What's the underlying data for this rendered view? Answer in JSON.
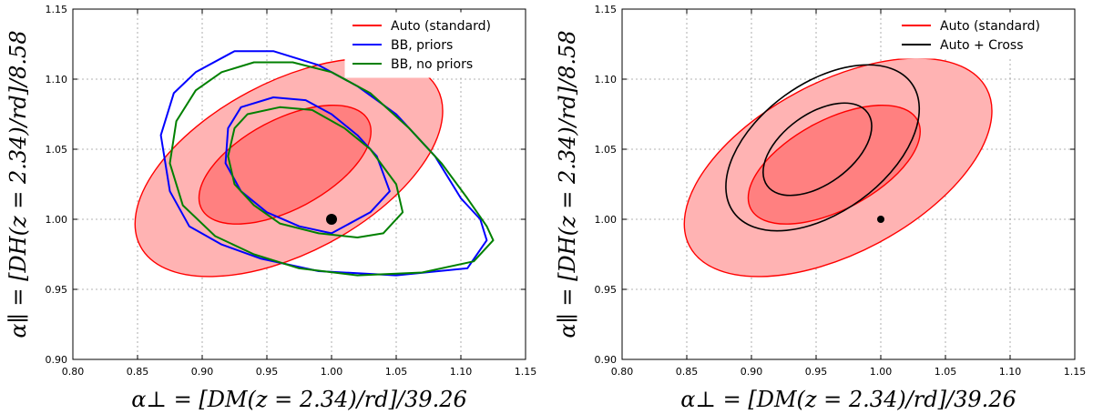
{
  "chart_data": [
    {
      "type": "contour",
      "xlabel": "α⊥ = [DM(z = 2.34)/rd]/39.26",
      "ylabel": "α∥ = [DH(z = 2.34)/rd]/8.58",
      "xlim": [
        0.8,
        1.15
      ],
      "ylim": [
        0.9,
        1.15
      ],
      "xticks": [
        "0.80",
        "0.85",
        "0.90",
        "0.95",
        "1.00",
        "1.05",
        "1.10",
        "1.15"
      ],
      "yticks": [
        "0.90",
        "0.95",
        "1.00",
        "1.05",
        "1.10",
        "1.15"
      ],
      "grid": true,
      "legend_position": "top-right",
      "legend": [
        {
          "label": "Auto (standard)",
          "color": "#ff0000"
        },
        {
          "label": "BB, priors",
          "color": "#0000ff"
        },
        {
          "label": "BB, no priors",
          "color": "#008000"
        }
      ],
      "fiducial_point": {
        "x": 1.0,
        "y": 1.0
      },
      "filled_contours": [
        {
          "series": "Auto (standard)",
          "level": "2sigma",
          "color": "#ffb3b3",
          "center": [
            0.967,
            1.037
          ],
          "semi_axes": [
            0.13,
            0.061
          ],
          "angle_deg": -28
        },
        {
          "series": "Auto (standard)",
          "level": "1sigma",
          "color": "#ff8080",
          "center": [
            0.964,
            1.039
          ],
          "semi_axes": [
            0.073,
            0.032
          ],
          "angle_deg": -28
        }
      ],
      "line_contours": [
        {
          "series": "BB, priors",
          "color": "#0000ff",
          "points": [
            [
              0.925,
              1.12
            ],
            [
              0.955,
              1.12
            ],
            [
              0.99,
              1.11
            ],
            [
              1.02,
              1.095
            ],
            [
              1.05,
              1.075
            ],
            [
              1.08,
              1.045
            ],
            [
              1.1,
              1.015
            ],
            [
              1.115,
              1.0
            ],
            [
              1.12,
              0.985
            ],
            [
              1.105,
              0.965
            ],
            [
              1.05,
              0.96
            ],
            [
              0.99,
              0.963
            ],
            [
              0.945,
              0.972
            ],
            [
              0.915,
              0.982
            ],
            [
              0.89,
              0.995
            ],
            [
              0.875,
              1.02
            ],
            [
              0.868,
              1.06
            ],
            [
              0.878,
              1.09
            ],
            [
              0.895,
              1.105
            ]
          ]
        },
        {
          "series": "BB, priors",
          "color": "#0000ff",
          "points": [
            [
              0.93,
              1.08
            ],
            [
              0.955,
              1.087
            ],
            [
              0.98,
              1.085
            ],
            [
              1.0,
              1.075
            ],
            [
              1.02,
              1.06
            ],
            [
              1.035,
              1.045
            ],
            [
              1.045,
              1.02
            ],
            [
              1.03,
              1.005
            ],
            [
              1.0,
              0.99
            ],
            [
              0.975,
              0.995
            ],
            [
              0.95,
              1.005
            ],
            [
              0.93,
              1.02
            ],
            [
              0.918,
              1.04
            ],
            [
              0.92,
              1.065
            ]
          ]
        },
        {
          "series": "BB, no priors",
          "color": "#008000",
          "points": [
            [
              0.915,
              1.105
            ],
            [
              0.94,
              1.112
            ],
            [
              0.97,
              1.112
            ],
            [
              1.0,
              1.105
            ],
            [
              1.03,
              1.09
            ],
            [
              1.06,
              1.065
            ],
            [
              1.085,
              1.04
            ],
            [
              1.105,
              1.015
            ],
            [
              1.12,
              0.995
            ],
            [
              1.125,
              0.985
            ],
            [
              1.11,
              0.97
            ],
            [
              1.07,
              0.962
            ],
            [
              1.02,
              0.96
            ],
            [
              0.975,
              0.965
            ],
            [
              0.94,
              0.975
            ],
            [
              0.91,
              0.988
            ],
            [
              0.885,
              1.01
            ],
            [
              0.875,
              1.04
            ],
            [
              0.88,
              1.07
            ],
            [
              0.895,
              1.092
            ]
          ]
        },
        {
          "series": "BB, no priors",
          "color": "#008000",
          "points": [
            [
              0.935,
              1.075
            ],
            [
              0.96,
              1.08
            ],
            [
              0.985,
              1.078
            ],
            [
              1.01,
              1.065
            ],
            [
              1.03,
              1.05
            ],
            [
              1.05,
              1.025
            ],
            [
              1.055,
              1.005
            ],
            [
              1.04,
              0.99
            ],
            [
              1.02,
              0.987
            ],
            [
              0.99,
              0.99
            ],
            [
              0.96,
              0.997
            ],
            [
              0.94,
              1.01
            ],
            [
              0.925,
              1.025
            ],
            [
              0.92,
              1.045
            ],
            [
              0.925,
              1.065
            ]
          ]
        }
      ]
    },
    {
      "type": "contour",
      "xlabel": "α⊥ = [DM(z = 2.34)/rd]/39.26",
      "ylabel": "α∥ = [DH(z = 2.34)/rd]/8.58",
      "xlim": [
        0.8,
        1.15
      ],
      "ylim": [
        0.9,
        1.15
      ],
      "xticks": [
        "0.80",
        "0.85",
        "0.90",
        "0.95",
        "1.00",
        "1.05",
        "1.10",
        "1.15"
      ],
      "yticks": [
        "0.90",
        "0.95",
        "1.00",
        "1.05",
        "1.10",
        "1.15"
      ],
      "grid": true,
      "legend_position": "top-right",
      "legend": [
        {
          "label": "Auto (standard)",
          "color": "#ff0000"
        },
        {
          "label": "Auto + Cross",
          "color": "#000000"
        }
      ],
      "fiducial_point": {
        "x": 1.0,
        "y": 1.0
      },
      "filled_contours": [
        {
          "series": "Auto (standard)",
          "level": "2sigma",
          "color": "#ffb3b3",
          "center": [
            0.967,
            1.037
          ],
          "semi_axes": [
            0.13,
            0.061
          ],
          "angle_deg": -28
        },
        {
          "series": "Auto (standard)",
          "level": "1sigma",
          "color": "#ff8080",
          "center": [
            0.964,
            1.039
          ],
          "semi_axes": [
            0.073,
            0.032
          ],
          "angle_deg": -28
        }
      ],
      "line_ellipses": [
        {
          "series": "Auto + Cross",
          "level": "2sigma",
          "color": "#000000",
          "center": [
            0.955,
            1.051
          ],
          "semi_axes": [
            0.085,
            0.046
          ],
          "angle_deg": -36
        },
        {
          "series": "Auto + Cross",
          "level": "1sigma",
          "color": "#000000",
          "center": [
            0.951,
            1.05
          ],
          "semi_axes": [
            0.048,
            0.025
          ],
          "angle_deg": -36
        }
      ]
    }
  ]
}
